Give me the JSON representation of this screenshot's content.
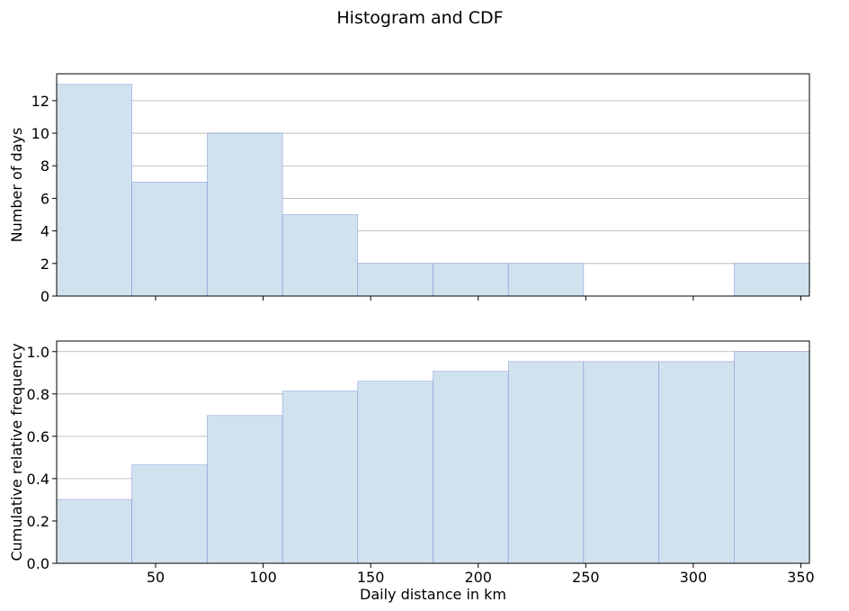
{
  "figure": {
    "title": "Histogram and CDF"
  },
  "colors": {
    "bar_fill": "#d1e2ef",
    "bar_edge": "#5566cc",
    "grid": "#b0b0b0",
    "axis": "#000000"
  },
  "chart_data": [
    {
      "type": "bar",
      "subtype": "histogram",
      "title": "",
      "xlabel": "",
      "ylabel": "Number of days",
      "bin_edges": [
        4,
        39,
        74,
        109,
        144,
        179,
        214,
        249,
        284,
        319,
        354
      ],
      "values": [
        13,
        7,
        10,
        5,
        2,
        2,
        2,
        0,
        0,
        2
      ],
      "xlim": [
        4,
        354
      ],
      "ylim": [
        0,
        13.65
      ],
      "xticks": [
        50,
        100,
        150,
        200,
        250,
        300,
        350
      ],
      "xtick_labels_visible": false,
      "yticks": [
        0,
        2,
        4,
        6,
        8,
        10,
        12
      ],
      "ytick_labels": [
        "0",
        "2",
        "4",
        "6",
        "8",
        "10",
        "12"
      ],
      "grid": "y",
      "legend": "none"
    },
    {
      "type": "bar",
      "subtype": "cumulative-histogram",
      "title": "",
      "xlabel": "Daily distance in km",
      "ylabel": "Cumulative relative frequency",
      "bin_edges": [
        4,
        39,
        74,
        109,
        144,
        179,
        214,
        249,
        284,
        319,
        354
      ],
      "values": [
        0.302,
        0.465,
        0.698,
        0.814,
        0.86,
        0.907,
        0.953,
        0.953,
        0.953,
        1.0
      ],
      "xlim": [
        4,
        354
      ],
      "ylim": [
        0,
        1.05
      ],
      "xticks": [
        50,
        100,
        150,
        200,
        250,
        300,
        350
      ],
      "xtick_labels": [
        "50",
        "100",
        "150",
        "200",
        "250",
        "300",
        "350"
      ],
      "yticks": [
        0.0,
        0.2,
        0.4,
        0.6,
        0.8,
        1.0
      ],
      "ytick_labels": [
        "0.0",
        "0.2",
        "0.4",
        "0.6",
        "0.8",
        "1.0"
      ],
      "grid": "y",
      "legend": "none"
    }
  ]
}
